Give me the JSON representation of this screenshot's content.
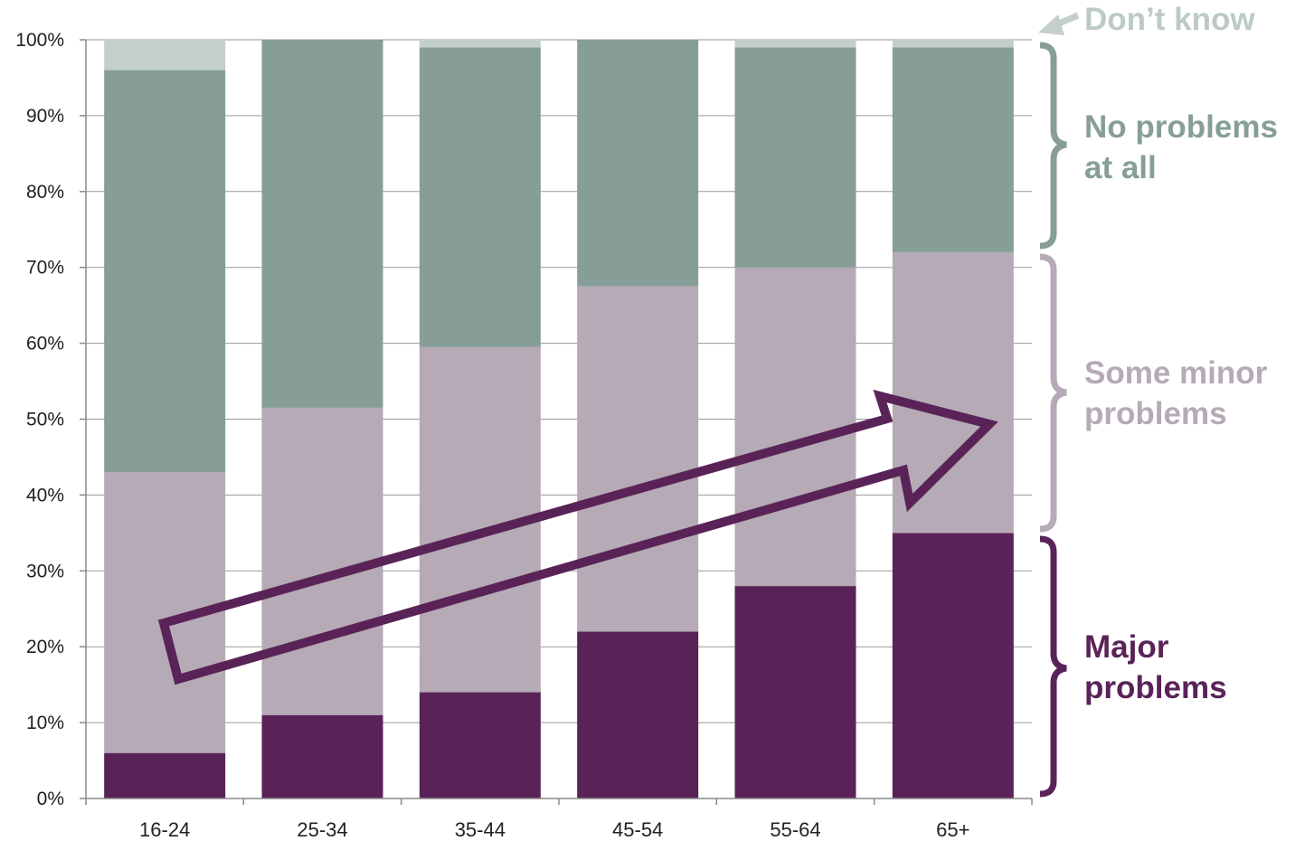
{
  "chart_data": {
    "type": "bar",
    "stacked": true,
    "categories": [
      "16-24",
      "25-34",
      "35-44",
      "45-54",
      "55-64",
      "65+"
    ],
    "series": [
      {
        "name": "Major problems",
        "color": "#5a2358",
        "values": [
          6,
          11,
          14,
          22,
          28,
          35
        ]
      },
      {
        "name": "Some minor problems",
        "color": "#b5aab5",
        "values": [
          37,
          40.5,
          45.5,
          45.5,
          42,
          37
        ]
      },
      {
        "name": "No problems at all",
        "color": "#879e98",
        "values": [
          53,
          48.5,
          39.5,
          32.5,
          29,
          27
        ]
      },
      {
        "name": "Don’t know",
        "color": "#c4cfcc",
        "values": [
          4,
          0,
          1,
          0,
          1,
          1
        ]
      }
    ],
    "yticks": [
      "0%",
      "10%",
      "20%",
      "30%",
      "40%",
      "50%",
      "60%",
      "70%",
      "80%",
      "90%",
      "100%"
    ],
    "ylim": [
      0,
      100
    ],
    "grid": true,
    "legend_placement": "right",
    "legend_labels": {
      "dont_know": "Don’t know",
      "no_problems": [
        "No problems",
        "at all"
      ],
      "minor": [
        "Some minor",
        "problems"
      ],
      "major": [
        "Major",
        "problems"
      ]
    },
    "annotation": "trend-arrow-upward",
    "colors": {
      "major": "#5a2358",
      "minor": "#b5aab5",
      "none": "#879e98",
      "dont_know": "#c4cfcc",
      "dont_know_text": "#bccac6"
    }
  }
}
